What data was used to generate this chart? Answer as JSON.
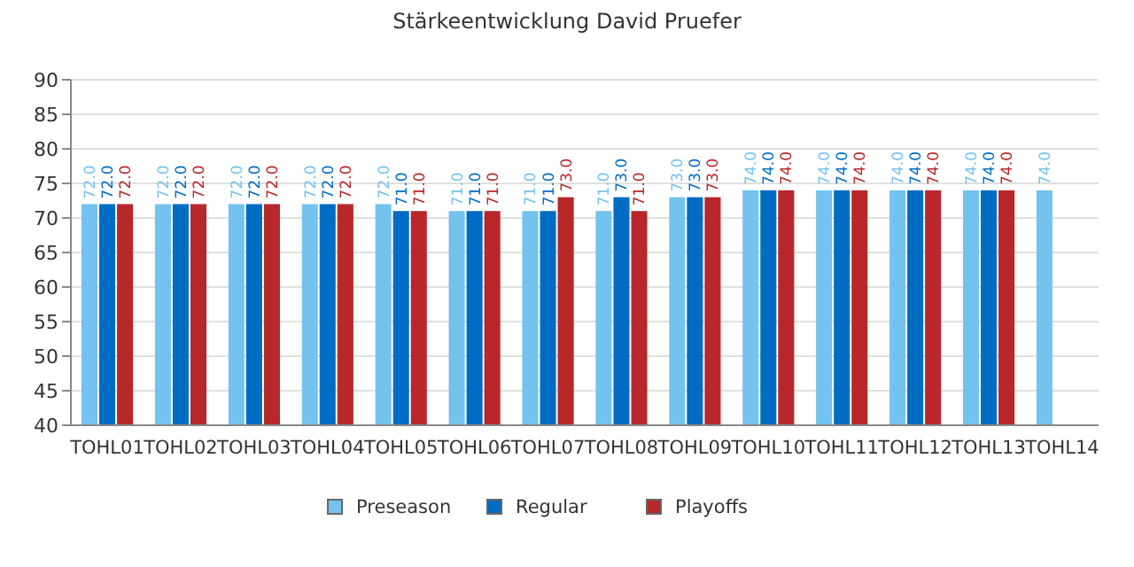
{
  "chart_data": {
    "type": "bar",
    "title": "Stärkeentwicklung David Pruefer",
    "categories": [
      "TOHL01",
      "TOHL02",
      "TOHL03",
      "TOHL04",
      "TOHL05",
      "TOHL06",
      "TOHL07",
      "TOHL08",
      "TOHL09",
      "TOHL10",
      "TOHL11",
      "TOHL12",
      "TOHL13",
      "TOHL14"
    ],
    "series": [
      {
        "name": "Preseason",
        "color": "#74c3ee",
        "values": [
          72,
          72,
          72,
          72,
          72,
          71,
          71,
          71,
          73,
          74,
          74,
          74,
          74,
          74
        ],
        "value_labels": [
          "72.0",
          "72.0",
          "72.0",
          "72.0",
          "72.0",
          "71.0",
          "71.0",
          "71.0",
          "73.0",
          "74.0",
          "74.0",
          "74.0",
          "74.0",
          "74.0"
        ]
      },
      {
        "name": "Regular",
        "color": "#006cc4",
        "values": [
          72,
          72,
          72,
          72,
          71,
          71,
          71,
          73,
          73,
          74,
          74,
          74,
          74,
          null
        ],
        "value_labels": [
          "72.0",
          "72.0",
          "72.0",
          "72.0",
          "71.0",
          "71.0",
          "71.0",
          "73.0",
          "73.0",
          "74.0",
          "74.0",
          "74.0",
          "74.0",
          null
        ]
      },
      {
        "name": "Playoffs",
        "color": "#b8272a",
        "values": [
          72,
          72,
          72,
          72,
          71,
          71,
          73,
          71,
          73,
          74,
          74,
          74,
          74,
          null
        ],
        "value_labels": [
          "72.0",
          "72.0",
          "72.0",
          "72.0",
          "71.0",
          "71.0",
          "73.0",
          "71.0",
          "73.0",
          "74.0",
          "74.0",
          "74.0",
          "74.0",
          null
        ]
      }
    ],
    "ylim": [
      40,
      90
    ],
    "yticks": [
      40,
      45,
      50,
      55,
      60,
      65,
      70,
      75,
      80,
      85,
      90
    ],
    "grid": "y",
    "legend": "bottom"
  }
}
